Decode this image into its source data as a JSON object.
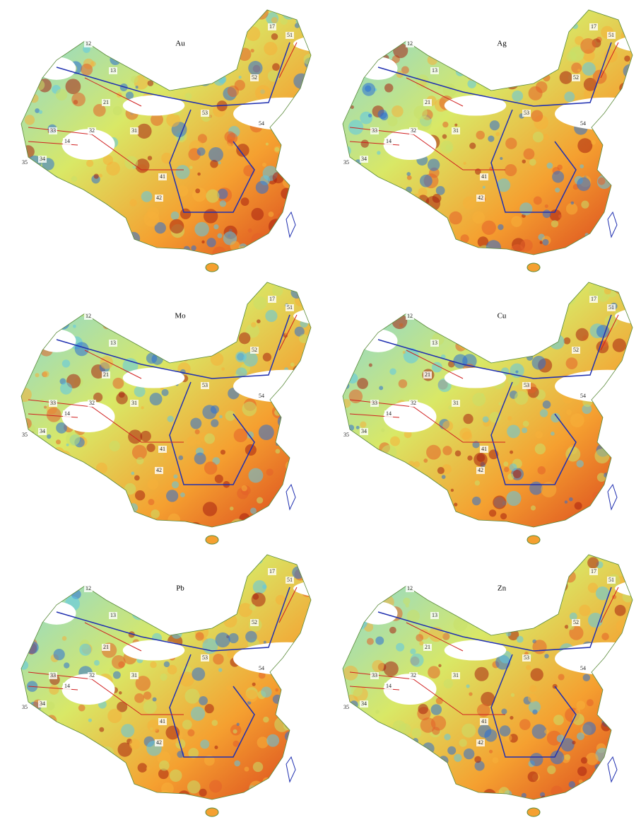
{
  "panels": [
    {
      "title": "Au",
      "labels": [
        "12",
        "13",
        "14",
        "17",
        "21",
        "31",
        "32",
        "33",
        "34",
        "35",
        "41",
        "42",
        "51",
        "52",
        "53",
        "54"
      ]
    },
    {
      "title": "Ag",
      "labels": [
        "12",
        "13",
        "14",
        "17",
        "21",
        "31",
        "32",
        "33",
        "34",
        "35",
        "41",
        "42",
        "51",
        "52",
        "53",
        "54"
      ]
    },
    {
      "title": "Mo",
      "labels": [
        "12",
        "13",
        "14",
        "17",
        "21",
        "31",
        "32",
        "33",
        "34",
        "35",
        "41",
        "42",
        "51",
        "52",
        "53",
        "54"
      ]
    },
    {
      "title": "Cu",
      "labels": [
        "12",
        "13",
        "14",
        "17",
        "21",
        "31",
        "32",
        "33",
        "34",
        "35",
        "41",
        "42",
        "51",
        "52",
        "53",
        "54"
      ]
    },
    {
      "title": "Pb",
      "labels": [
        "12",
        "13",
        "14",
        "17",
        "21",
        "31",
        "32",
        "33",
        "34",
        "35",
        "41",
        "42",
        "51",
        "52",
        "53",
        "54"
      ]
    },
    {
      "title": "Zn",
      "labels": [
        "12",
        "13",
        "14",
        "17",
        "21",
        "31",
        "32",
        "33",
        "34",
        "35",
        "41",
        "42",
        "51",
        "52",
        "53",
        "54"
      ]
    }
  ]
}
